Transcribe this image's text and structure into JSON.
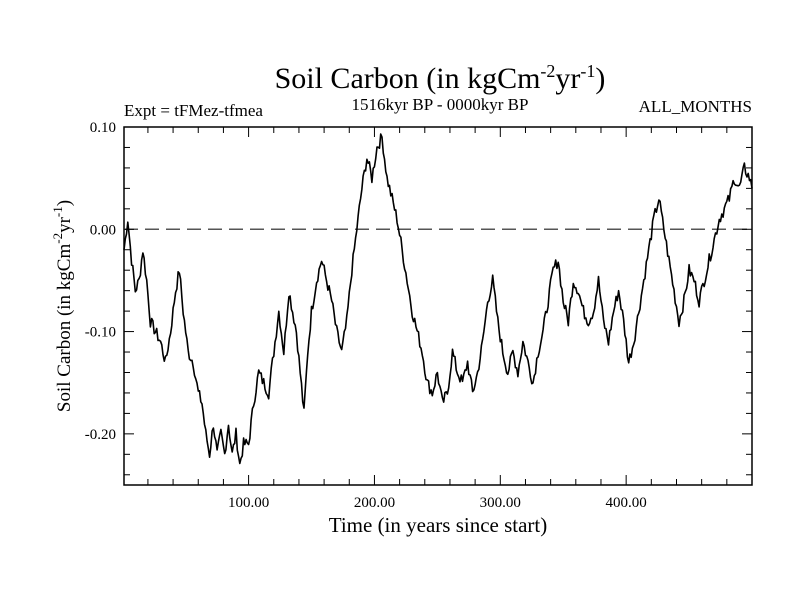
{
  "chart_data": {
    "type": "line",
    "title_main": "Soil Carbon (in kgCm",
    "title_sup1": "-2",
    "title_mid": "yr",
    "title_sup2": "-1",
    "title_close": ")",
    "expt_label": "Expt = tFMez-tfmea",
    "period_label": "1516kyr BP - 0000kyr BP",
    "months_label": "ALL_MONTHS",
    "xlabel": "Time (in years since start)",
    "ylabel_main": "Soil Carbon (in kgCm",
    "ylabel_sup1": "-2",
    "ylabel_mid": "yr",
    "ylabel_sup2": "-1",
    "ylabel_close": ")",
    "xlim": [
      1,
      500
    ],
    "ylim": [
      -0.25,
      0.1
    ],
    "xticks": [
      {
        "value": 100,
        "label": "100.00"
      },
      {
        "value": 200,
        "label": "200.00"
      },
      {
        "value": 300,
        "label": "300.00"
      },
      {
        "value": 400,
        "label": "400.00"
      }
    ],
    "yticks": [
      {
        "value": 0.1,
        "label": "0.10"
      },
      {
        "value": 0.0,
        "label": "0.00"
      },
      {
        "value": -0.1,
        "label": "-0.10"
      },
      {
        "value": -0.2,
        "label": "-0.20"
      }
    ],
    "reference_line": 0.0,
    "series": [
      {
        "name": "Soil Carbon",
        "color": "#000000",
        "points": [
          [
            1,
            -0.02
          ],
          [
            4,
            0.01
          ],
          [
            7,
            -0.03
          ],
          [
            10,
            -0.06
          ],
          [
            13,
            -0.05
          ],
          [
            16,
            -0.02
          ],
          [
            19,
            -0.05
          ],
          [
            22,
            -0.09
          ],
          [
            26,
            -0.1
          ],
          [
            30,
            -0.11
          ],
          [
            34,
            -0.13
          ],
          [
            38,
            -0.1
          ],
          [
            42,
            -0.06
          ],
          [
            45,
            -0.04
          ],
          [
            48,
            -0.08
          ],
          [
            52,
            -0.12
          ],
          [
            56,
            -0.13
          ],
          [
            60,
            -0.16
          ],
          [
            63,
            -0.17
          ],
          [
            66,
            -0.2
          ],
          [
            69,
            -0.22
          ],
          [
            72,
            -0.19
          ],
          [
            75,
            -0.22
          ],
          [
            78,
            -0.2
          ],
          [
            81,
            -0.22
          ],
          [
            84,
            -0.19
          ],
          [
            87,
            -0.22
          ],
          [
            90,
            -0.2
          ],
          [
            93,
            -0.23
          ],
          [
            96,
            -0.21
          ],
          [
            100,
            -0.21
          ],
          [
            104,
            -0.17
          ],
          [
            108,
            -0.14
          ],
          [
            112,
            -0.15
          ],
          [
            116,
            -0.16
          ],
          [
            120,
            -0.12
          ],
          [
            124,
            -0.08
          ],
          [
            128,
            -0.12
          ],
          [
            132,
            -0.06
          ],
          [
            135,
            -0.08
          ],
          [
            138,
            -0.1
          ],
          [
            141,
            -0.14
          ],
          [
            144,
            -0.18
          ],
          [
            147,
            -0.12
          ],
          [
            150,
            -0.08
          ],
          [
            154,
            -0.05
          ],
          [
            158,
            -0.03
          ],
          [
            162,
            -0.05
          ],
          [
            166,
            -0.07
          ],
          [
            170,
            -0.1
          ],
          [
            174,
            -0.12
          ],
          [
            178,
            -0.09
          ],
          [
            182,
            -0.04
          ],
          [
            186,
            0.0
          ],
          [
            190,
            0.04
          ],
          [
            194,
            0.07
          ],
          [
            198,
            0.05
          ],
          [
            202,
            0.08
          ],
          [
            206,
            0.09
          ],
          [
            210,
            0.05
          ],
          [
            214,
            0.03
          ],
          [
            218,
            0.01
          ],
          [
            222,
            -0.02
          ],
          [
            226,
            -0.05
          ],
          [
            230,
            -0.08
          ],
          [
            234,
            -0.1
          ],
          [
            238,
            -0.12
          ],
          [
            242,
            -0.15
          ],
          [
            246,
            -0.16
          ],
          [
            250,
            -0.14
          ],
          [
            254,
            -0.17
          ],
          [
            258,
            -0.16
          ],
          [
            262,
            -0.12
          ],
          [
            266,
            -0.14
          ],
          [
            270,
            -0.15
          ],
          [
            274,
            -0.13
          ],
          [
            278,
            -0.16
          ],
          [
            282,
            -0.14
          ],
          [
            286,
            -0.11
          ],
          [
            290,
            -0.07
          ],
          [
            294,
            -0.05
          ],
          [
            298,
            -0.09
          ],
          [
            302,
            -0.12
          ],
          [
            306,
            -0.14
          ],
          [
            310,
            -0.12
          ],
          [
            314,
            -0.14
          ],
          [
            318,
            -0.11
          ],
          [
            322,
            -0.13
          ],
          [
            326,
            -0.15
          ],
          [
            330,
            -0.12
          ],
          [
            334,
            -0.1
          ],
          [
            338,
            -0.07
          ],
          [
            342,
            -0.04
          ],
          [
            346,
            -0.03
          ],
          [
            350,
            -0.07
          ],
          [
            354,
            -0.09
          ],
          [
            358,
            -0.05
          ],
          [
            362,
            -0.06
          ],
          [
            366,
            -0.08
          ],
          [
            370,
            -0.09
          ],
          [
            374,
            -0.08
          ],
          [
            378,
            -0.05
          ],
          [
            382,
            -0.09
          ],
          [
            386,
            -0.11
          ],
          [
            390,
            -0.08
          ],
          [
            394,
            -0.06
          ],
          [
            398,
            -0.09
          ],
          [
            402,
            -0.13
          ],
          [
            406,
            -0.11
          ],
          [
            410,
            -0.08
          ],
          [
            414,
            -0.05
          ],
          [
            418,
            -0.02
          ],
          [
            422,
            0.01
          ],
          [
            426,
            0.03
          ],
          [
            430,
            0.0
          ],
          [
            434,
            -0.03
          ],
          [
            438,
            -0.06
          ],
          [
            442,
            -0.09
          ],
          [
            446,
            -0.07
          ],
          [
            450,
            -0.04
          ],
          [
            454,
            -0.05
          ],
          [
            458,
            -0.07
          ],
          [
            462,
            -0.05
          ],
          [
            466,
            -0.03
          ],
          [
            470,
            -0.01
          ],
          [
            474,
            0.01
          ],
          [
            478,
            0.02
          ],
          [
            482,
            0.03
          ],
          [
            486,
            0.05
          ],
          [
            490,
            0.04
          ],
          [
            494,
            0.06
          ],
          [
            498,
            0.05
          ],
          [
            500,
            0.04
          ]
        ]
      }
    ]
  }
}
